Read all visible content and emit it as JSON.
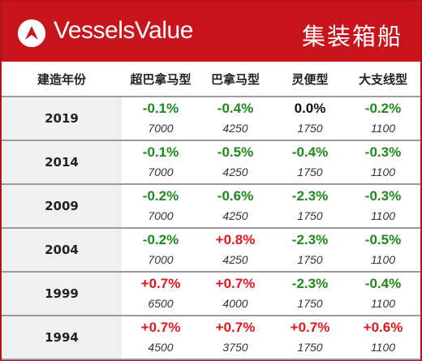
{
  "header": {
    "brand": "VesselsValue",
    "title": "集装箱船",
    "colors": {
      "header_bg": "#c8151d",
      "negative": "#1c8a1c",
      "positive": "#e0161e"
    }
  },
  "columns": [
    "建造年份",
    "超巴拿马型",
    "巴拿马型",
    "灵便型",
    "大支线型"
  ],
  "rows": [
    {
      "year": "2019",
      "cells": [
        {
          "pct": "-0.1%",
          "val": "7000",
          "dir": "neg"
        },
        {
          "pct": "-0.4%",
          "val": "4250",
          "dir": "neg"
        },
        {
          "pct": "0.0%",
          "val": "1750",
          "dir": "zero"
        },
        {
          "pct": "-0.2%",
          "val": "1100",
          "dir": "neg"
        }
      ]
    },
    {
      "year": "2014",
      "cells": [
        {
          "pct": "-0.1%",
          "val": "7000",
          "dir": "neg"
        },
        {
          "pct": "-0.5%",
          "val": "4250",
          "dir": "neg"
        },
        {
          "pct": "-0.4%",
          "val": "1750",
          "dir": "neg"
        },
        {
          "pct": "-0.3%",
          "val": "1100",
          "dir": "neg"
        }
      ]
    },
    {
      "year": "2009",
      "cells": [
        {
          "pct": "-0.2%",
          "val": "7000",
          "dir": "neg"
        },
        {
          "pct": "-0.6%",
          "val": "4250",
          "dir": "neg"
        },
        {
          "pct": "-2.3%",
          "val": "1750",
          "dir": "neg"
        },
        {
          "pct": "-0.3%",
          "val": "1100",
          "dir": "neg"
        }
      ]
    },
    {
      "year": "2004",
      "cells": [
        {
          "pct": "-0.2%",
          "val": "7000",
          "dir": "neg"
        },
        {
          "pct": "+0.8%",
          "val": "4250",
          "dir": "pos"
        },
        {
          "pct": "-2.3%",
          "val": "1750",
          "dir": "neg"
        },
        {
          "pct": "-0.5%",
          "val": "1100",
          "dir": "neg"
        }
      ]
    },
    {
      "year": "1999",
      "cells": [
        {
          "pct": "+0.7%",
          "val": "6500",
          "dir": "pos"
        },
        {
          "pct": "+0.7%",
          "val": "4000",
          "dir": "pos"
        },
        {
          "pct": "-2.3%",
          "val": "1750",
          "dir": "neg"
        },
        {
          "pct": "-0.4%",
          "val": "1100",
          "dir": "neg"
        }
      ]
    },
    {
      "year": "1994",
      "cells": [
        {
          "pct": "+0.7%",
          "val": "4500",
          "dir": "pos"
        },
        {
          "pct": "+0.7%",
          "val": "3750",
          "dir": "pos"
        },
        {
          "pct": "+0.7%",
          "val": "1750",
          "dir": "pos"
        },
        {
          "pct": "+0.6%",
          "val": "1100",
          "dir": "pos"
        }
      ]
    }
  ]
}
